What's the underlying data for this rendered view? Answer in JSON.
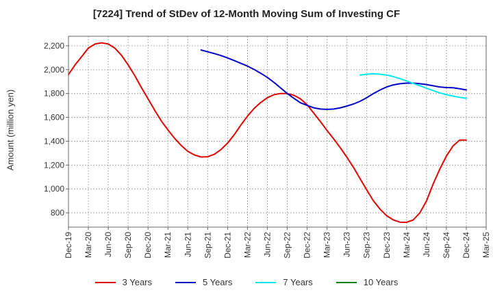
{
  "chart_data": {
    "type": "line",
    "title": "[7224]  Trend of StDev of 12-Month Moving Sum of Investing CF",
    "xlabel": "",
    "ylabel": "Amount (million yen)",
    "ylim": [
      680,
      2280
    ],
    "yticks": [
      800,
      1000,
      1200,
      1400,
      1600,
      1800,
      2000,
      2200
    ],
    "ytick_labels": [
      "800",
      "1,000",
      "1,200",
      "1,400",
      "1,600",
      "1,800",
      "2,000",
      "2,200"
    ],
    "x_start": "Dec-19",
    "x_ticks": [
      "Dec-19",
      "Mar-20",
      "Jun-20",
      "Sep-20",
      "Dec-20",
      "Mar-21",
      "Jun-21",
      "Sep-21",
      "Dec-21",
      "Mar-22",
      "Jun-22",
      "Sep-22",
      "Dec-22",
      "Mar-23",
      "Jun-23",
      "Sep-23",
      "Dec-23",
      "Mar-24",
      "Jun-24",
      "Sep-24",
      "Dec-24",
      "Mar-25"
    ],
    "grid": true,
    "legend_position": "bottom",
    "series": [
      {
        "name": "3 Years",
        "color": "#e00000",
        "x": [
          "Dec-19",
          "Jan-20",
          "Feb-20",
          "Mar-20",
          "Apr-20",
          "May-20",
          "Jun-20",
          "Jul-20",
          "Aug-20",
          "Sep-20",
          "Oct-20",
          "Nov-20",
          "Dec-20",
          "Jan-21",
          "Feb-21",
          "Mar-21",
          "Apr-21",
          "May-21",
          "Jun-21",
          "Jul-21",
          "Aug-21",
          "Sep-21",
          "Oct-21",
          "Nov-21",
          "Dec-21",
          "Jan-22",
          "Feb-22",
          "Mar-22",
          "Apr-22",
          "May-22",
          "Jun-22",
          "Jul-22",
          "Aug-22",
          "Sep-22",
          "Oct-22",
          "Nov-22",
          "Dec-22",
          "Jan-23",
          "Feb-23",
          "Mar-23",
          "Apr-23",
          "May-23",
          "Jun-23",
          "Jul-23",
          "Aug-23",
          "Sep-23",
          "Oct-23",
          "Nov-23",
          "Dec-23",
          "Jan-24",
          "Feb-24",
          "Mar-24",
          "Apr-24",
          "May-24",
          "Jun-24",
          "Jul-24",
          "Aug-24",
          "Sep-24",
          "Oct-24",
          "Nov-24",
          "Dec-24"
        ],
        "values": [
          1960,
          2040,
          2110,
          2180,
          2215,
          2225,
          2215,
          2180,
          2120,
          2040,
          1950,
          1850,
          1755,
          1660,
          1570,
          1495,
          1425,
          1365,
          1315,
          1285,
          1268,
          1270,
          1290,
          1330,
          1385,
          1455,
          1535,
          1610,
          1675,
          1725,
          1765,
          1790,
          1800,
          1800,
          1785,
          1755,
          1705,
          1635,
          1565,
          1490,
          1420,
          1345,
          1265,
          1180,
          1085,
          990,
          900,
          830,
          775,
          740,
          722,
          720,
          740,
          800,
          900,
          1040,
          1165,
          1275,
          1360,
          1410,
          1410
        ]
      },
      {
        "name": "5 Years",
        "color": "#0000c8",
        "x": [
          "Aug-21",
          "Sep-21",
          "Oct-21",
          "Nov-21",
          "Dec-21",
          "Jan-22",
          "Feb-22",
          "Mar-22",
          "Apr-22",
          "May-22",
          "Jun-22",
          "Jul-22",
          "Aug-22",
          "Sep-22",
          "Oct-22",
          "Nov-22",
          "Dec-22",
          "Jan-23",
          "Feb-23",
          "Mar-23",
          "Apr-23",
          "May-23",
          "Jun-23",
          "Jul-23",
          "Aug-23",
          "Sep-23",
          "Oct-23",
          "Nov-23",
          "Dec-23",
          "Jan-24",
          "Feb-24",
          "Mar-24",
          "Apr-24",
          "May-24",
          "Jun-24",
          "Jul-24",
          "Aug-24",
          "Sep-24",
          "Oct-24",
          "Nov-24",
          "Dec-24"
        ],
        "values": [
          2165,
          2150,
          2135,
          2118,
          2098,
          2076,
          2053,
          2030,
          2002,
          1970,
          1935,
          1893,
          1847,
          1800,
          1760,
          1722,
          1700,
          1680,
          1670,
          1667,
          1670,
          1680,
          1695,
          1712,
          1735,
          1765,
          1800,
          1830,
          1855,
          1872,
          1882,
          1887,
          1887,
          1882,
          1875,
          1865,
          1855,
          1850,
          1848,
          1840,
          1830
        ]
      },
      {
        "name": "7 Years",
        "color": "#00e8ee",
        "x": [
          "Aug-23",
          "Sep-23",
          "Oct-23",
          "Nov-23",
          "Dec-23",
          "Jan-24",
          "Feb-24",
          "Mar-24",
          "Apr-24",
          "May-24",
          "Jun-24",
          "Jul-24",
          "Aug-24",
          "Sep-24",
          "Oct-24",
          "Nov-24",
          "Dec-24"
        ],
        "values": [
          1955,
          1962,
          1965,
          1962,
          1955,
          1942,
          1925,
          1905,
          1885,
          1865,
          1845,
          1825,
          1805,
          1790,
          1778,
          1768,
          1760
        ]
      },
      {
        "name": "10 Years",
        "color": "#008000",
        "x": [],
        "values": []
      }
    ]
  }
}
